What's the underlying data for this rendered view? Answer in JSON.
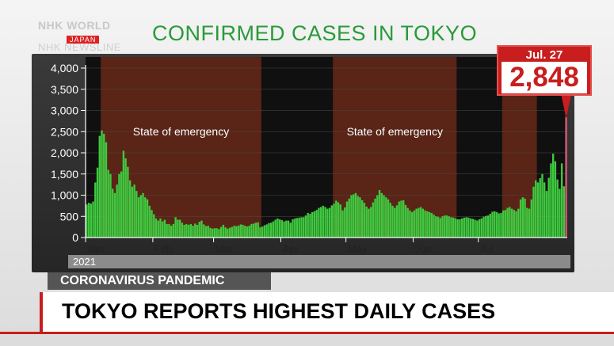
{
  "broadcaster": {
    "logo_line1": "NHK WORLD",
    "logo_line2": "JAPAN",
    "program": "NHK NEWSLINE"
  },
  "topic_label": "CORONAVIRUS PANDEMIC",
  "headline": "TOKYO REPORTS HIGHEST DAILY CASES",
  "colors": {
    "bar": "#3fc93f",
    "emergency_shade": "#5a2416",
    "accent_red": "#c81e1e",
    "title_green": "#2a9a3a"
  },
  "chart_data": {
    "type": "bar",
    "title": "CONFIRMED CASES IN TOKYO",
    "year_label": "2021",
    "ylim": [
      0,
      4000
    ],
    "yticks": [
      0,
      500,
      1000,
      1500,
      2000,
      2500,
      3000,
      3500,
      4000
    ],
    "ytick_labels": [
      "0",
      "500",
      "1,000",
      "1,500",
      "2,000",
      "2,500",
      "3,000",
      "3,500",
      "4,000"
    ],
    "x_start": "Jan. 1",
    "x_end": "Jul. 27",
    "month_labels": [
      {
        "label": "Jan.",
        "day": 1
      },
      {
        "label": "Feb.",
        "day": 32
      },
      {
        "label": "Mar.",
        "day": 60
      },
      {
        "label": "Apr.",
        "day": 91
      },
      {
        "label": "May",
        "day": 121
      },
      {
        "label": "Jun.",
        "day": 152
      },
      {
        "label": "Jul.",
        "day": 182
      }
    ],
    "emergency_periods": [
      {
        "label": "State of emergency",
        "start_day": 8,
        "end_day": 81
      },
      {
        "label": "State of emergency",
        "start_day": 115,
        "end_day": 171
      },
      {
        "label": "",
        "start_day": 193,
        "end_day": 208
      }
    ],
    "highlight": {
      "date": "Jul. 27",
      "value": "2,848",
      "numeric": 2848
    },
    "values": [
      780,
      820,
      800,
      850,
      1300,
      1650,
      2400,
      2530,
      2450,
      2250,
      1600,
      1500,
      1150,
      1050,
      1250,
      1500,
      1560,
      2050,
      1870,
      1670,
      1350,
      1200,
      1250,
      1100,
      950,
      1000,
      1050,
      950,
      900,
      750,
      650,
      550,
      450,
      400,
      450,
      380,
      420,
      320,
      320,
      280,
      320,
      480,
      420,
      420,
      350,
      300,
      320,
      300,
      320,
      280,
      330,
      300,
      370,
      400,
      310,
      270,
      280,
      230,
      210,
      220,
      220,
      200,
      250,
      300,
      240,
      210,
      230,
      250,
      280,
      270,
      280,
      310,
      300,
      280,
      260,
      280,
      320,
      330,
      350,
      360,
      240,
      260,
      290,
      310,
      340,
      350,
      380,
      420,
      450,
      430,
      410,
      380,
      400,
      400,
      350,
      430,
      450,
      460,
      470,
      480,
      480,
      520,
      580,
      560,
      600,
      620,
      650,
      700,
      720,
      750,
      720,
      680,
      700,
      760,
      800,
      870,
      830,
      780,
      640,
      710,
      850,
      920,
      1000,
      1020,
      1050,
      980,
      950,
      880,
      820,
      730,
      680,
      720,
      830,
      920,
      1000,
      1120,
      1050,
      1000,
      950,
      900,
      820,
      750,
      700,
      760,
      850,
      870,
      880,
      770,
      700,
      640,
      600,
      640,
      680,
      700,
      720,
      680,
      640,
      620,
      600,
      580,
      540,
      500,
      490,
      460,
      500,
      520,
      520,
      500,
      480,
      470,
      450,
      430,
      430,
      450,
      470,
      480,
      470,
      450,
      440,
      420,
      400,
      430,
      450,
      490,
      510,
      520,
      560,
      610,
      620,
      600,
      570,
      580,
      640,
      650,
      700,
      720,
      680,
      650,
      620,
      680,
      900,
      950,
      920,
      700,
      680,
      900,
      1200,
      1350,
      1300,
      1400,
      1500,
      1300,
      1100,
      1410,
      1750,
      1980,
      1800,
      1370,
      1150,
      1750,
      1210,
      2848
    ]
  }
}
